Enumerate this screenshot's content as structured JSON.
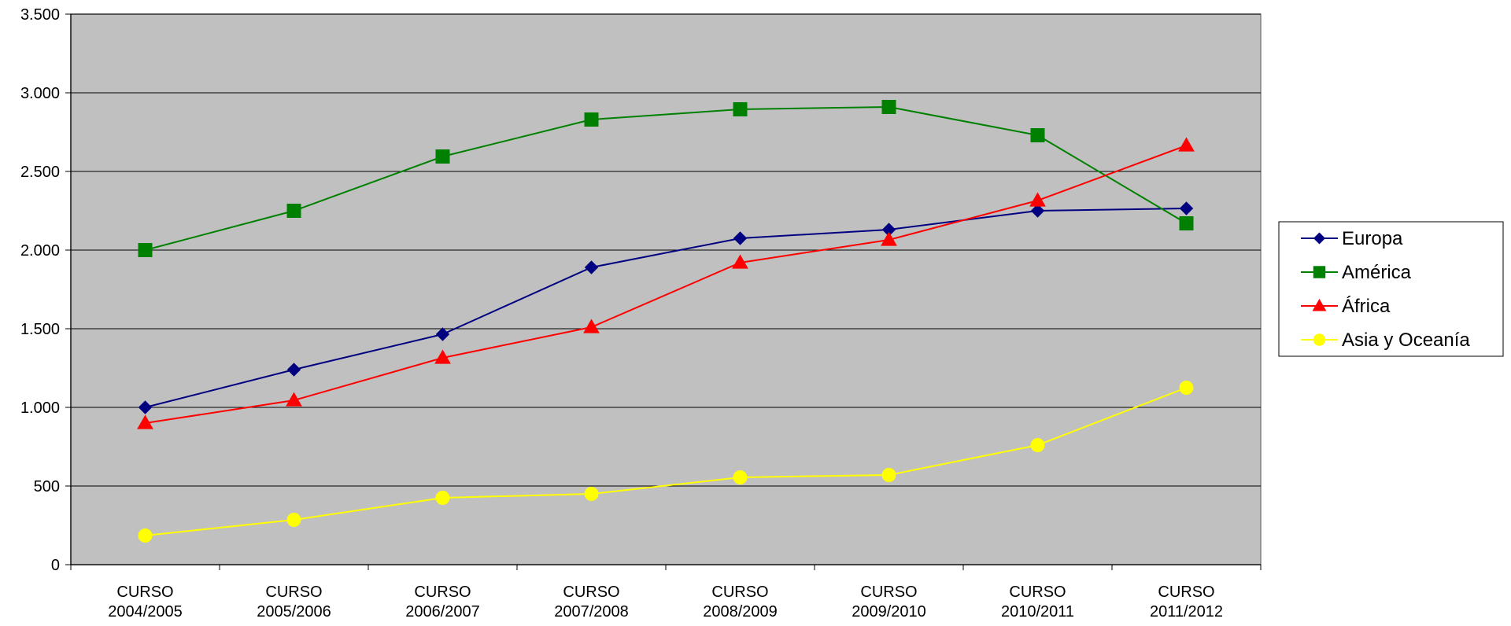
{
  "chart_data": {
    "type": "line",
    "title": "",
    "xlabel": "",
    "ylabel": "",
    "categories": [
      [
        "CURSO",
        "2004/2005"
      ],
      [
        "CURSO",
        "2005/2006"
      ],
      [
        "CURSO",
        "2006/2007"
      ],
      [
        "CURSO",
        "2007/2008"
      ],
      [
        "CURSO",
        "2008/2009"
      ],
      [
        "CURSO",
        "2009/2010"
      ],
      [
        "CURSO",
        "2010/2011"
      ],
      [
        "CURSO",
        "2011/2012"
      ]
    ],
    "ylim": [
      0,
      3500
    ],
    "yticks": [
      {
        "value": 0,
        "label": "0"
      },
      {
        "value": 500,
        "label": "500"
      },
      {
        "value": 1000,
        "label": "1.000"
      },
      {
        "value": 1500,
        "label": "1.500"
      },
      {
        "value": 2000,
        "label": "2.000"
      },
      {
        "value": 2500,
        "label": "2.500"
      },
      {
        "value": 3000,
        "label": "3.000"
      },
      {
        "value": 3500,
        "label": "3.500"
      }
    ],
    "grid": "horizontal",
    "plot_background": "#C0C0C0",
    "legend_position": "right",
    "series": [
      {
        "name": "Europa",
        "color": "#000080",
        "marker": "diamond",
        "values": [
          1000,
          1240,
          1465,
          1890,
          2075,
          2130,
          2250,
          2265
        ]
      },
      {
        "name": "América",
        "color": "#008000",
        "marker": "square",
        "values": [
          2000,
          2250,
          2595,
          2830,
          2895,
          2910,
          2730,
          2170
        ]
      },
      {
        "name": "África",
        "color": "#FF0000",
        "marker": "triangle",
        "values": [
          900,
          1045,
          1315,
          1510,
          1920,
          2065,
          2315,
          2665
        ]
      },
      {
        "name": "Asia y Oceanía",
        "color": "#FFFF00",
        "marker": "circle",
        "values": [
          185,
          285,
          425,
          450,
          555,
          570,
          760,
          1125
        ]
      }
    ]
  }
}
